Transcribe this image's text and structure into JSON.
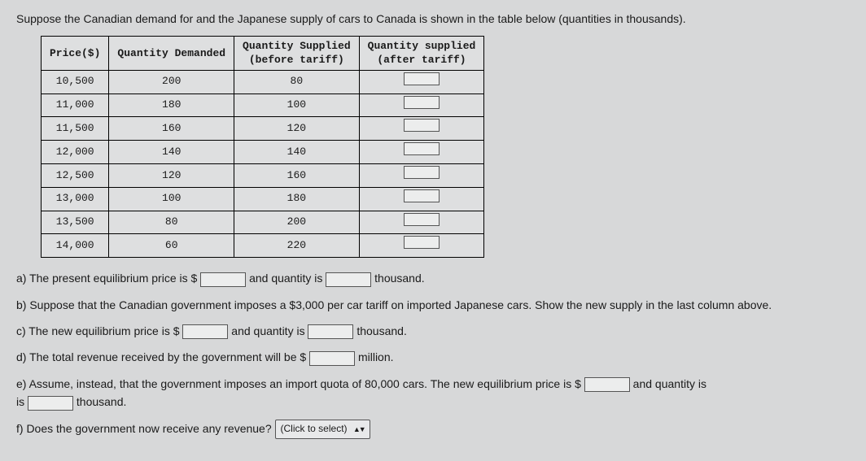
{
  "intro": "Suppose the Canadian demand for and the Japanese supply of cars to Canada is shown in the table below (quantities in thousands).",
  "table": {
    "headers": {
      "price": "Price($)",
      "qd": "Quantity Demanded",
      "qs_before": "Quantity Supplied\n(before tariff)",
      "qs_after": "Quantity supplied\n(after tariff)"
    },
    "rows": [
      {
        "price": "10,500",
        "qd": "200",
        "qs": "80"
      },
      {
        "price": "11,000",
        "qd": "180",
        "qs": "100"
      },
      {
        "price": "11,500",
        "qd": "160",
        "qs": "120"
      },
      {
        "price": "12,000",
        "qd": "140",
        "qs": "140"
      },
      {
        "price": "12,500",
        "qd": "120",
        "qs": "160"
      },
      {
        "price": "13,000",
        "qd": "100",
        "qs": "180"
      },
      {
        "price": "13,500",
        "qd": "80",
        "qs": "200"
      },
      {
        "price": "14,000",
        "qd": "60",
        "qs": "220"
      }
    ]
  },
  "questions": {
    "a_1": "a) The present equilibrium price is $",
    "a_2": " and quantity is ",
    "a_3": " thousand.",
    "b": "b) Suppose that the Canadian government imposes a $3,000 per car tariff on imported Japanese cars. Show the new supply in the last column above.",
    "c_1": "c) The new equilibrium price is $",
    "c_2": " and quantity is ",
    "c_3": " thousand.",
    "d_1": "d) The total revenue received by the government will be $",
    "d_2": " million.",
    "e_1": "e) Assume, instead, that the government imposes an import quota of 80,000 cars. The new equilibrium price is $",
    "e_2": " and quantity is ",
    "e_3": " thousand.",
    "f": "f) Does the government now receive any revenue? "
  },
  "select": {
    "label": "(Click to select)"
  },
  "style": {
    "background": "#d7d8d9",
    "text_color": "#1a1a1a",
    "border_color": "#000000",
    "input_bg": "#eceded",
    "font_size_body": 14,
    "font_size_table": 13,
    "table_font": "Courier New, monospace"
  }
}
